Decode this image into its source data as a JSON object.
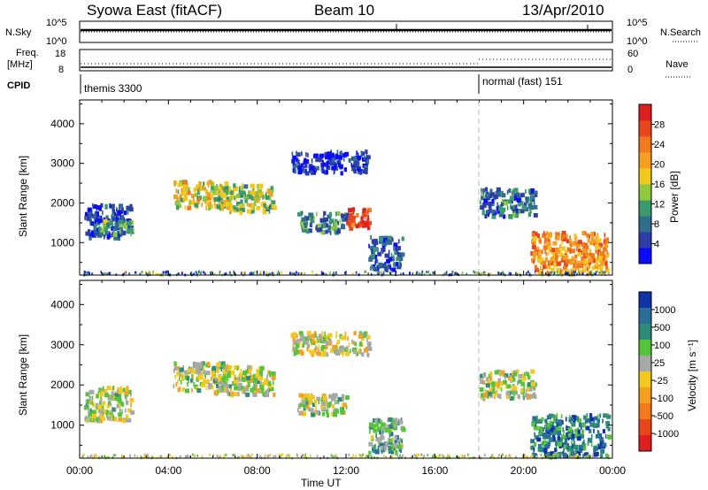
{
  "header": {
    "station": "Syowa East (fitACF)",
    "beam": "Beam 10",
    "date": "13/Apr/2010"
  },
  "top_panels": {
    "nsky_label": "N.Sky",
    "nsky_ticks": [
      "10^5",
      "10^0"
    ],
    "nsearch_label": "N.Search",
    "nsearch_ticks": [
      "10^5",
      "10^0"
    ],
    "freq_label": "Freq.",
    "freq_unit": "[MHz]",
    "freq_ticks": [
      "18",
      "8"
    ],
    "nave_label": "Nave",
    "nave_ticks": [
      "60",
      "0"
    ],
    "cpid_label": "CPID",
    "modes": [
      {
        "name": "themis 3300",
        "start_hour": 0
      },
      {
        "name": "normal (fast) 151",
        "start_hour": 18
      }
    ]
  },
  "chart_data": [
    {
      "type": "heatmap",
      "name": "power",
      "ylabel": "Slant Range [km]",
      "xlabel": "",
      "x_range_hours": [
        0,
        24
      ],
      "ylim": [
        180,
        4600
      ],
      "yticks": [
        "1000",
        "2000",
        "3000",
        "4000"
      ],
      "colorbar_label": "Power [dB]",
      "colorbar_ticks": [
        "4",
        "8",
        "12",
        "16",
        "20",
        "24",
        "28"
      ],
      "colorbar_colors": [
        "#0a0afc",
        "#2d3ea8",
        "#2f6e8c",
        "#3a9a6e",
        "#8ec83c",
        "#f2c91c",
        "#f5a020",
        "#f07a1c",
        "#e8461c",
        "#e01f1f"
      ],
      "echo_regions": [
        {
          "x": [
            0.2,
            2.3
          ],
          "y": [
            1150,
            2000
          ],
          "level": 0.15
        },
        {
          "x": [
            0.7,
            2.3
          ],
          "y": [
            1250,
            1600
          ],
          "level": 0.35
        },
        {
          "x": [
            4.2,
            6.7
          ],
          "y": [
            1900,
            2600
          ],
          "level": 0.55
        },
        {
          "x": [
            6.0,
            8.7
          ],
          "y": [
            1800,
            2500
          ],
          "level": 0.45
        },
        {
          "x": [
            9.8,
            12.0
          ],
          "y": [
            1300,
            1800
          ],
          "level": 0.3
        },
        {
          "x": [
            12.0,
            13.0
          ],
          "y": [
            1400,
            1950
          ],
          "level": 0.85
        },
        {
          "x": [
            9.5,
            13.0
          ],
          "y": [
            2800,
            3350
          ],
          "level": 0.12
        },
        {
          "x": [
            13.0,
            14.5
          ],
          "y": [
            350,
            1200
          ],
          "level": 0.2
        },
        {
          "x": [
            18.0,
            20.5
          ],
          "y": [
            1700,
            2400
          ],
          "level": 0.25
        },
        {
          "x": [
            20.3,
            23.8
          ],
          "y": [
            250,
            1300
          ],
          "level": 0.7
        }
      ]
    },
    {
      "type": "heatmap",
      "name": "velocity",
      "ylabel": "Slant Range [km]",
      "xlabel": "Time UT",
      "x_range_hours": [
        0,
        24
      ],
      "ylim": [
        180,
        4600
      ],
      "yticks": [
        "1000",
        "2000",
        "3000",
        "4000"
      ],
      "xticks": [
        "00:00",
        "04:00",
        "08:00",
        "12:00",
        "16:00",
        "20:00",
        "00:00"
      ],
      "colorbar_label": "Velocity [m s⁻¹]",
      "colorbar_ticks": [
        "1000",
        "500",
        "100",
        "25",
        "-25",
        "-100",
        "-500",
        "-1000"
      ],
      "colorbar_colors": [
        "#1034a8",
        "#2a6e9a",
        "#2f8c78",
        "#54c43a",
        "#a8a8a8",
        "#f2c91c",
        "#f5a020",
        "#f07a1c",
        "#e8461c",
        "#e01f1f"
      ],
      "echo_regions": [
        {
          "x": [
            0.2,
            2.3
          ],
          "y": [
            1150,
            2000
          ],
          "level": 0.45
        },
        {
          "x": [
            4.2,
            6.7
          ],
          "y": [
            1900,
            2600
          ],
          "level": 0.45
        },
        {
          "x": [
            6.0,
            8.7
          ],
          "y": [
            1800,
            2500
          ],
          "level": 0.45
        },
        {
          "x": [
            9.8,
            12.0
          ],
          "y": [
            1300,
            1800
          ],
          "level": 0.45
        },
        {
          "x": [
            9.5,
            13.0
          ],
          "y": [
            2800,
            3350
          ],
          "level": 0.5
        },
        {
          "x": [
            13.0,
            14.5
          ],
          "y": [
            350,
            1200
          ],
          "level": 0.35
        },
        {
          "x": [
            18.0,
            20.5
          ],
          "y": [
            1700,
            2400
          ],
          "level": 0.45
        },
        {
          "x": [
            20.3,
            23.8
          ],
          "y": [
            250,
            1300
          ],
          "level": 0.2
        }
      ]
    }
  ]
}
